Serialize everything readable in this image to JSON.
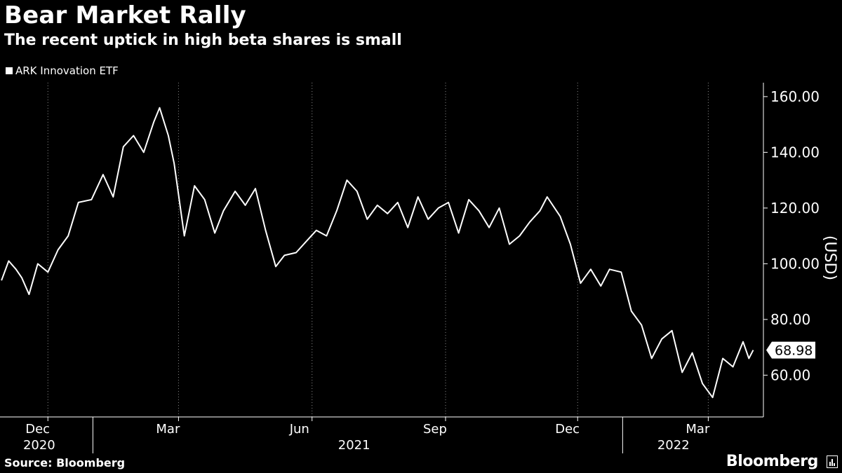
{
  "title": "Bear Market Rally",
  "subtitle": "The recent uptick in high beta shares is small",
  "source": "Source: Bloomberg",
  "brand": "Bloomberg",
  "chart_data": {
    "type": "line",
    "series": [
      {
        "name": "ARK Innovation ETF",
        "color": "#ffffff",
        "x": [
          "2020-10-30",
          "2020-11-04",
          "2020-11-09",
          "2020-11-13",
          "2020-11-18",
          "2020-11-24",
          "2020-12-01",
          "2020-12-08",
          "2020-12-15",
          "2020-12-22",
          "2020-12-31",
          "2021-01-08",
          "2021-01-15",
          "2021-01-22",
          "2021-01-29",
          "2021-02-05",
          "2021-02-12",
          "2021-02-16",
          "2021-02-22",
          "2021-02-26",
          "2021-03-05",
          "2021-03-12",
          "2021-03-19",
          "2021-03-26",
          "2021-04-01",
          "2021-04-09",
          "2021-04-16",
          "2021-04-23",
          "2021-04-30",
          "2021-05-07",
          "2021-05-13",
          "2021-05-21",
          "2021-05-28",
          "2021-06-04",
          "2021-06-11",
          "2021-06-18",
          "2021-06-25",
          "2021-07-02",
          "2021-07-09",
          "2021-07-16",
          "2021-07-23",
          "2021-07-30",
          "2021-08-06",
          "2021-08-13",
          "2021-08-20",
          "2021-08-27",
          "2021-09-03",
          "2021-09-10",
          "2021-09-17",
          "2021-09-24",
          "2021-10-01",
          "2021-10-08",
          "2021-10-15",
          "2021-10-22",
          "2021-10-29",
          "2021-11-05",
          "2021-11-10",
          "2021-11-19",
          "2021-11-26",
          "2021-12-03",
          "2021-12-10",
          "2021-12-17",
          "2021-12-23",
          "2021-12-31",
          "2022-01-07",
          "2022-01-14",
          "2022-01-21",
          "2022-01-28",
          "2022-02-04",
          "2022-02-11",
          "2022-02-18",
          "2022-02-25",
          "2022-03-04",
          "2022-03-08",
          "2022-03-11",
          "2022-03-18",
          "2022-03-25",
          "2022-03-29",
          "2022-04-01"
        ],
        "values": [
          94,
          101,
          98,
          95,
          89,
          100,
          97,
          105,
          110,
          122,
          123,
          132,
          124,
          142,
          146,
          140,
          151,
          156,
          146,
          136,
          110,
          128,
          123,
          111,
          119,
          126,
          121,
          127,
          112,
          99,
          103,
          104,
          108,
          112,
          110,
          119,
          130,
          126,
          116,
          121,
          118,
          122,
          113,
          124,
          116,
          120,
          122,
          111,
          123,
          119,
          113,
          120,
          107,
          110,
          115,
          119,
          124,
          117,
          107,
          93,
          98,
          92,
          98,
          97,
          83,
          78,
          66,
          73,
          76,
          61,
          68,
          57,
          52,
          60,
          66,
          63,
          72,
          66,
          69
        ]
      }
    ],
    "last_value_label": "68.98",
    "ylabel": "(USD)",
    "yticks": [
      "60.00",
      "80.00",
      "100.00",
      "120.00",
      "140.00",
      "160.00"
    ],
    "ylim": [
      45,
      165
    ],
    "xticks": [
      {
        "label": "Dec",
        "date": "2020-12-01"
      },
      {
        "label": "Mar",
        "date": "2021-03-01"
      },
      {
        "label": "Jun",
        "date": "2021-06-01"
      },
      {
        "label": "Sep",
        "date": "2021-09-01"
      },
      {
        "label": "Dec",
        "date": "2021-12-01"
      },
      {
        "label": "Mar",
        "date": "2022-03-01"
      }
    ],
    "years": [
      {
        "label": "2020",
        "date": "2020-11-25"
      },
      {
        "label": "2021",
        "date": "2021-06-30"
      },
      {
        "label": "2022",
        "date": "2022-02-05"
      }
    ],
    "year_boundaries": [
      "2021-01-01",
      "2022-01-01"
    ],
    "xlim": [
      "2020-10-29",
      "2022-04-08"
    ],
    "grid": "vertical dotted"
  }
}
